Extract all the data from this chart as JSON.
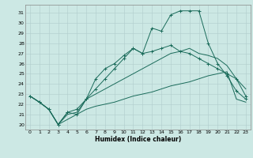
{
  "xlabel": "Humidex (Indice chaleur)",
  "bg_color": "#cce8e4",
  "grid_color": "#b0cccc",
  "line_color": "#1a6b5a",
  "xlim": [
    -0.5,
    23.5
  ],
  "ylim": [
    19.5,
    31.8
  ],
  "yticks": [
    20,
    21,
    22,
    23,
    24,
    25,
    26,
    27,
    28,
    29,
    30,
    31
  ],
  "xticks": [
    0,
    1,
    2,
    3,
    4,
    5,
    6,
    7,
    8,
    9,
    10,
    11,
    12,
    13,
    14,
    15,
    16,
    17,
    18,
    19,
    20,
    21,
    22,
    23
  ],
  "line_min_x": [
    0,
    1,
    2,
    3,
    4,
    5,
    6,
    7,
    8,
    9,
    10,
    11,
    12,
    13,
    14,
    15,
    16,
    17,
    18,
    19,
    20,
    21,
    22,
    23
  ],
  "line_min_y": [
    22.8,
    22.2,
    21.5,
    20.0,
    20.5,
    21.0,
    21.5,
    21.8,
    22.0,
    22.2,
    22.5,
    22.8,
    23.0,
    23.2,
    23.5,
    23.8,
    24.0,
    24.2,
    24.5,
    24.8,
    25.0,
    25.2,
    22.5,
    22.2
  ],
  "line_low_x": [
    0,
    1,
    2,
    3,
    4,
    5,
    6,
    7,
    8,
    9,
    10,
    11,
    12,
    13,
    14,
    15,
    16,
    17,
    18,
    19,
    20,
    21,
    22,
    23
  ],
  "line_low_y": [
    22.8,
    22.2,
    21.5,
    20.0,
    21.0,
    21.2,
    22.5,
    23.0,
    23.5,
    24.0,
    24.5,
    25.0,
    25.5,
    26.0,
    26.5,
    27.0,
    27.2,
    27.5,
    27.0,
    26.8,
    26.5,
    25.8,
    24.5,
    23.5
  ],
  "line_mid_x": [
    0,
    1,
    2,
    3,
    4,
    5,
    6,
    7,
    8,
    9,
    10,
    11,
    12,
    13,
    14,
    15,
    16,
    17,
    18,
    19,
    20,
    21,
    22,
    23
  ],
  "line_mid_y": [
    22.8,
    22.2,
    21.5,
    20.0,
    21.2,
    21.0,
    22.5,
    24.5,
    25.5,
    26.0,
    26.8,
    27.5,
    27.0,
    27.2,
    27.5,
    27.8,
    27.2,
    27.0,
    26.5,
    26.0,
    25.5,
    25.0,
    24.5,
    22.8
  ],
  "line_max_x": [
    0,
    1,
    2,
    3,
    4,
    5,
    6,
    7,
    8,
    9,
    10,
    11,
    12,
    13,
    14,
    15,
    16,
    17,
    18,
    19,
    20,
    21,
    22,
    23
  ],
  "line_max_y": [
    22.8,
    22.2,
    21.5,
    20.0,
    21.2,
    21.5,
    22.5,
    23.5,
    24.5,
    25.5,
    26.5,
    27.5,
    27.0,
    29.5,
    29.2,
    30.8,
    31.2,
    31.2,
    31.2,
    28.0,
    26.0,
    24.8,
    23.3,
    22.5
  ]
}
